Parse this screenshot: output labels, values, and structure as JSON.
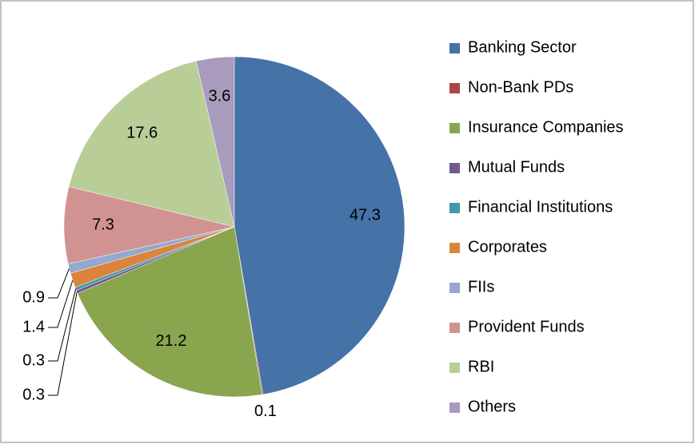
{
  "chart_data": {
    "type": "pie",
    "categories": [
      "Banking Sector",
      "Non-Bank PDs",
      "Insurance Companies",
      "Mutual Funds",
      "Financial Institutions",
      "Corporates",
      "FIIs",
      "Provident Funds",
      "RBI",
      "Others"
    ],
    "values": [
      47.3,
      0.1,
      21.2,
      0.3,
      0.3,
      1.4,
      0.9,
      7.3,
      17.6,
      3.6
    ],
    "colors": [
      "#4572a7",
      "#aa4643",
      "#89a54e",
      "#71588f",
      "#4198af",
      "#db843d",
      "#93a9cf",
      "#d19392",
      "#b9cd96",
      "#a99bbd"
    ],
    "legend": "right"
  }
}
